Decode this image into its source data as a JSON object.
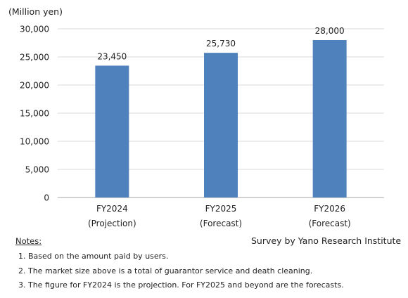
{
  "chart_data": {
    "type": "bar",
    "unit_label": "(Million yen)",
    "categories": [
      [
        "FY2024",
        "(Projection)"
      ],
      [
        "FY2025",
        "(Forecast)"
      ],
      [
        "FY2026",
        "(Forecast)"
      ]
    ],
    "values": [
      23450,
      25730,
      28000
    ],
    "value_labels": [
      "23,450",
      "25,730",
      "28,000"
    ],
    "ylim": [
      0,
      30000
    ],
    "yticks": [
      0,
      5000,
      10000,
      15000,
      20000,
      25000,
      30000
    ],
    "ytick_labels": [
      "0",
      "5,000",
      "10,000",
      "15,000",
      "20,000",
      "25,000",
      "30,000"
    ],
    "grid": true,
    "bar_color": "#4f81bd"
  },
  "source": "Survey by Yano Research Institute",
  "notes": {
    "title": "Notes:",
    "items": [
      "1.  Based on the amount paid by users.",
      "2.  The market size above is a total of guarantor service and death cleaning.",
      "3. The figure for FY2024 is the projection. For FY2025 and beyond are the forecasts."
    ]
  }
}
